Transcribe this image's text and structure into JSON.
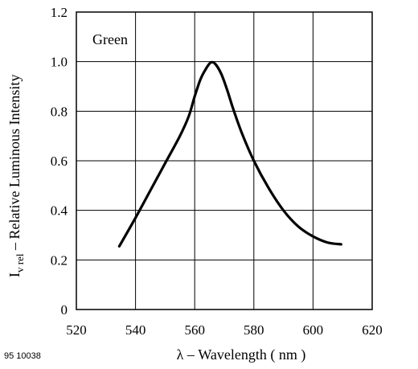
{
  "figure_id": "95 10038",
  "chart_data": {
    "type": "line",
    "annotation": "Green",
    "xlabel": "λ – Wavelength ( nm )",
    "ylabel": {
      "symbol": "I",
      "subscript": "v rel",
      "text": "  – Relative Luminous Intensity"
    },
    "xlim": [
      520,
      620
    ],
    "ylim": [
      0,
      1.2
    ],
    "x_ticks": [
      "520",
      "540",
      "560",
      "580",
      "600",
      "620"
    ],
    "y_ticks": [
      "0",
      "0.2",
      "0.4",
      "0.6",
      "0.8",
      "1.0",
      "1.2"
    ],
    "grid": true,
    "series": [
      {
        "x": [
          534.5,
          540,
          545,
          550,
          555,
          558,
          560,
          562,
          564,
          565.5,
          567,
          569,
          571,
          573,
          576,
          580,
          585,
          590,
          595,
          600,
          605,
          609.5
        ],
        "y": [
          0.255,
          0.37,
          0.48,
          0.59,
          0.7,
          0.78,
          0.86,
          0.93,
          0.975,
          0.997,
          0.99,
          0.95,
          0.885,
          0.81,
          0.71,
          0.6,
          0.49,
          0.4,
          0.335,
          0.295,
          0.27,
          0.263
        ]
      }
    ],
    "colors": {
      "line": "#000000",
      "grid": "#000000"
    }
  }
}
